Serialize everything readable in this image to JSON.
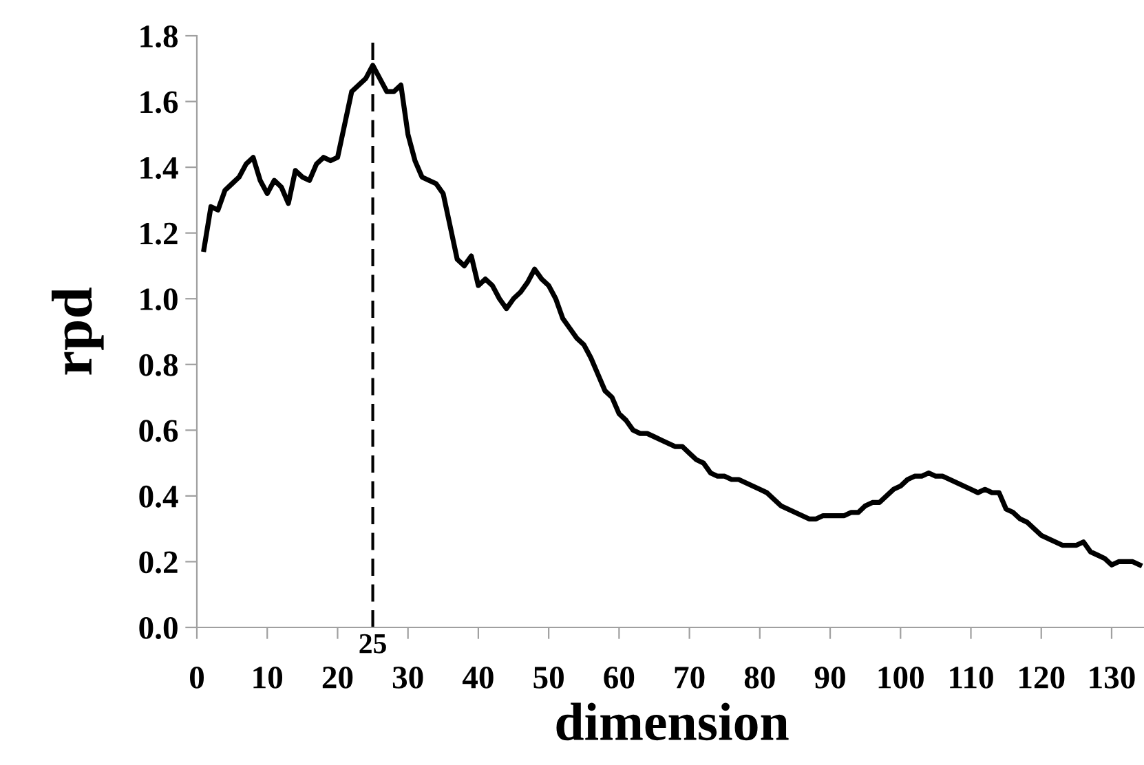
{
  "chart_data": {
    "type": "line",
    "xlabel": "dimension",
    "ylabel": "rpd",
    "x": [
      1,
      2,
      3,
      4,
      5,
      6,
      7,
      8,
      9,
      10,
      11,
      12,
      13,
      14,
      15,
      16,
      17,
      18,
      19,
      20,
      21,
      22,
      23,
      24,
      25,
      26,
      27,
      28,
      29,
      30,
      31,
      32,
      33,
      34,
      35,
      36,
      37,
      38,
      39,
      40,
      41,
      42,
      43,
      44,
      45,
      46,
      47,
      48,
      49,
      50,
      51,
      52,
      53,
      54,
      55,
      56,
      57,
      58,
      59,
      60,
      61,
      62,
      63,
      64,
      65,
      66,
      67,
      68,
      69,
      70,
      71,
      72,
      73,
      74,
      75,
      76,
      77,
      78,
      79,
      80,
      81,
      82,
      83,
      84,
      85,
      86,
      87,
      88,
      89,
      90,
      91,
      92,
      93,
      94,
      95,
      96,
      97,
      98,
      99,
      100,
      101,
      102,
      103,
      104,
      105,
      106,
      107,
      108,
      109,
      110,
      111,
      112,
      113,
      114,
      115,
      116,
      117,
      118,
      119,
      120,
      121,
      122,
      123,
      124,
      125,
      126,
      127,
      128,
      129,
      130,
      131,
      132,
      133,
      134
    ],
    "series": [
      {
        "color": "#000000",
        "values": [
          1.15,
          1.28,
          1.27,
          1.33,
          1.35,
          1.37,
          1.41,
          1.43,
          1.36,
          1.32,
          1.36,
          1.34,
          1.29,
          1.39,
          1.37,
          1.36,
          1.41,
          1.43,
          1.42,
          1.43,
          1.53,
          1.63,
          1.65,
          1.67,
          1.71,
          1.67,
          1.63,
          1.63,
          1.65,
          1.5,
          1.42,
          1.37,
          1.36,
          1.35,
          1.32,
          1.22,
          1.12,
          1.1,
          1.13,
          1.04,
          1.06,
          1.04,
          1.0,
          0.97,
          1.0,
          1.02,
          1.05,
          1.09,
          1.06,
          1.04,
          1.0,
          0.94,
          0.91,
          0.88,
          0.86,
          0.82,
          0.77,
          0.72,
          0.7,
          0.65,
          0.63,
          0.6,
          0.59,
          0.59,
          0.58,
          0.57,
          0.56,
          0.55,
          0.55,
          0.53,
          0.51,
          0.5,
          0.47,
          0.46,
          0.46,
          0.45,
          0.45,
          0.44,
          0.43,
          0.42,
          0.41,
          0.39,
          0.37,
          0.36,
          0.35,
          0.34,
          0.33,
          0.33,
          0.34,
          0.34,
          0.34,
          0.34,
          0.35,
          0.35,
          0.37,
          0.38,
          0.38,
          0.4,
          0.42,
          0.43,
          0.45,
          0.46,
          0.46,
          0.47,
          0.46,
          0.46,
          0.45,
          0.44,
          0.43,
          0.42,
          0.41,
          0.42,
          0.41,
          0.41,
          0.36,
          0.35,
          0.33,
          0.32,
          0.3,
          0.28,
          0.27,
          0.26,
          0.25,
          0.25,
          0.25,
          0.26,
          0.23,
          0.22,
          0.21,
          0.19,
          0.2,
          0.2,
          0.2,
          0.19
        ]
      }
    ],
    "xlim": [
      0,
      135
    ],
    "xticks": [
      0,
      10,
      20,
      30,
      40,
      50,
      60,
      70,
      80,
      90,
      100,
      110,
      120,
      130
    ],
    "ylim": [
      0,
      1.8
    ],
    "yticks": [
      {
        "value": 0,
        "label": "0.0"
      },
      {
        "value": 0.2,
        "label": "0.2"
      },
      {
        "value": 0.4,
        "label": "0.4"
      },
      {
        "value": 0.6,
        "label": "0.6"
      },
      {
        "value": 0.8,
        "label": "0.8"
      },
      {
        "value": 1.0,
        "label": "1.0"
      },
      {
        "value": 1.2,
        "label": "1.2"
      },
      {
        "value": 1.4,
        "label": "1.4"
      },
      {
        "value": 1.6,
        "label": "1.6"
      },
      {
        "value": 1.8,
        "label": "1.8"
      }
    ],
    "ref_lines": [
      {
        "axis": "x",
        "value": 25,
        "label": "25",
        "color": "#000000",
        "line_style": "dashed"
      }
    ],
    "grid": false,
    "legend": false,
    "marker": "none",
    "line_style": "solid"
  }
}
